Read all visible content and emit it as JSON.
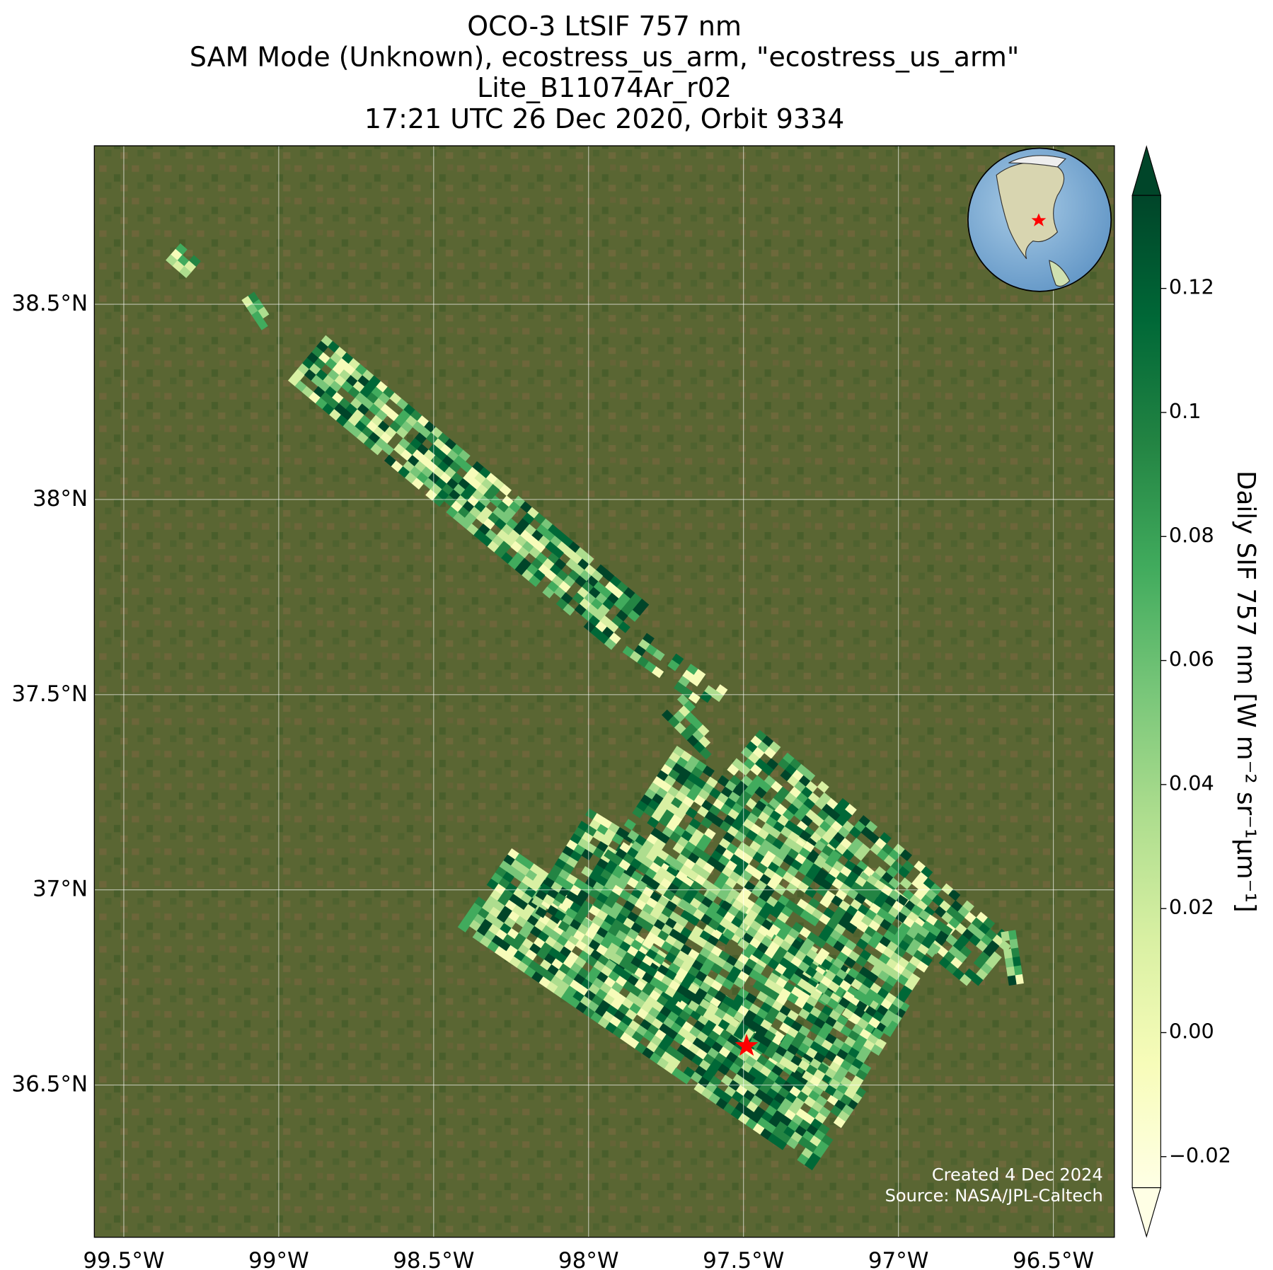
{
  "chart_data": {
    "type": "map",
    "title": [
      "OCO-3 LtSIF 757 nm",
      "SAM Mode (Unknown), ecostress_us_arm, \"ecostress_us_arm\"",
      "Lite_B11074Ar_r02",
      "17:21 UTC 26 Dec 2020, Orbit 9334"
    ],
    "xlim": [
      -99.595,
      -96.303
    ],
    "ylim": [
      36.11,
      38.906
    ],
    "xticks": [
      {
        "value": -99.5,
        "label": "99.5°W"
      },
      {
        "value": -99,
        "label": "99°W"
      },
      {
        "value": -98.5,
        "label": "98.5°W"
      },
      {
        "value": -98,
        "label": "98°W"
      },
      {
        "value": -97.5,
        "label": "97.5°W"
      },
      {
        "value": -97,
        "label": "97°W"
      },
      {
        "value": -96.5,
        "label": "96.5°W"
      }
    ],
    "yticks": [
      {
        "value": 38.5,
        "label": "38.5°N"
      },
      {
        "value": 38,
        "label": "38°N"
      },
      {
        "value": 37.5,
        "label": "37.5°N"
      },
      {
        "value": 37,
        "label": "37°N"
      },
      {
        "value": 36.5,
        "label": "36.5°N"
      }
    ],
    "grid": true,
    "site": {
      "lon": -97.49,
      "lat": 36.6,
      "color": "#ff0000"
    },
    "colorbar": {
      "label": "Daily SIF 757 nm [W m⁻² sr⁻¹µm⁻¹]",
      "lim": [
        -0.025,
        0.135
      ],
      "ticks": [
        {
          "value": -0.02,
          "label": "−0.02"
        },
        {
          "value": 0,
          "label": "0.00"
        },
        0.02,
        0.04,
        0.06,
        0.08,
        0.1,
        0.12
      ],
      "colors": [
        "#ffffe5",
        "#f7fcb9",
        "#d9f0a3",
        "#addd8e",
        "#78c679",
        "#41ab5d",
        "#238443",
        "#006837",
        "#004529"
      ]
    },
    "credits": [
      "Created 4 Dec 2024",
      "Source: NASA/JPL-Caltech"
    ]
  }
}
